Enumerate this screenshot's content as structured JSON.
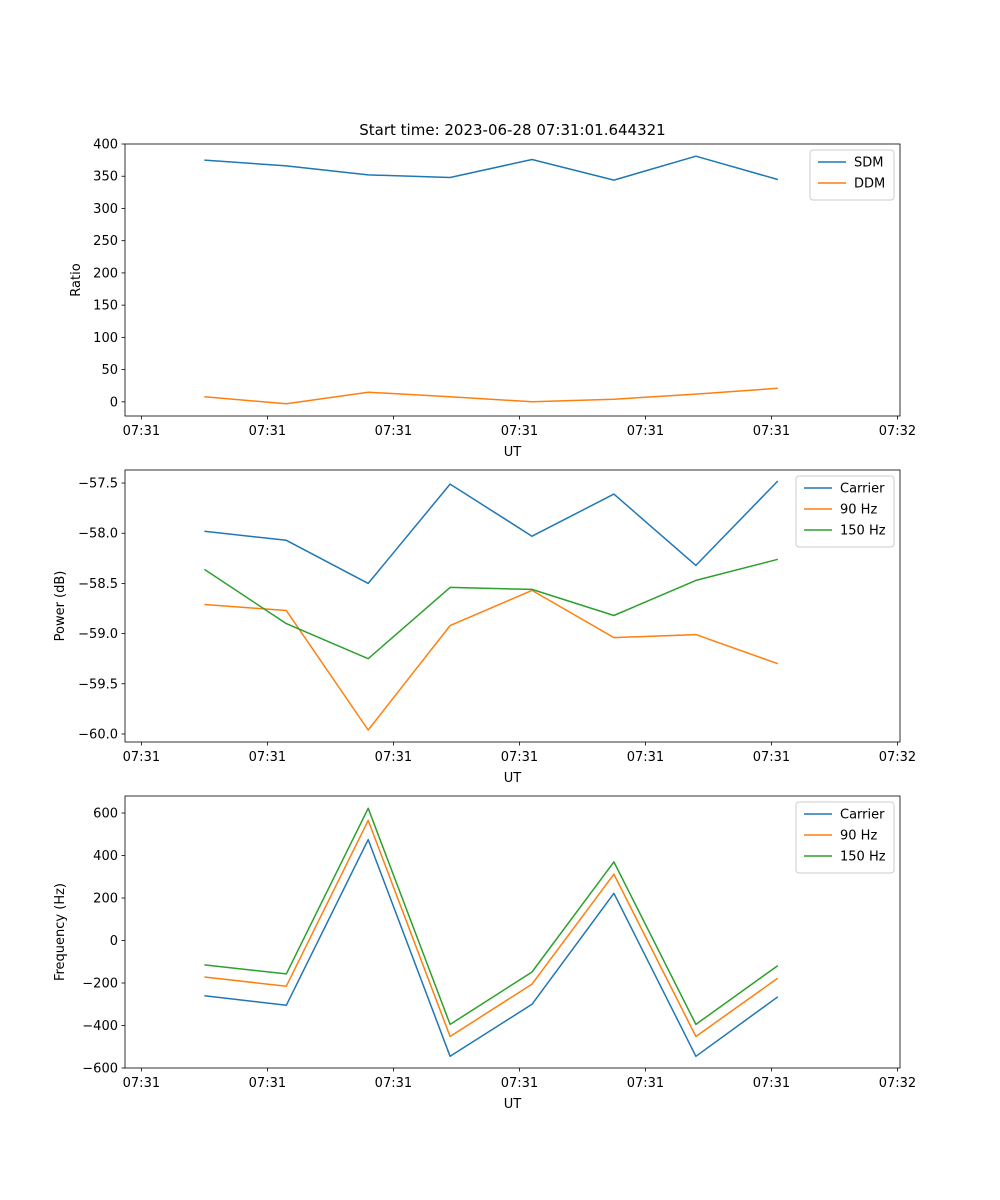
{
  "figure": {
    "title": "Start time: 2023-06-28 07:31:01.644321"
  },
  "colors": {
    "blue": "#1f77b4",
    "orange": "#ff7f0e",
    "green": "#2ca02c"
  },
  "chart_data": [
    {
      "type": "line",
      "title": "Start time: 2023-06-28 07:31:01.644321",
      "xlabel": "UT",
      "ylabel": "Ratio",
      "x_tick_labels": [
        "07:31",
        "07:31",
        "07:31",
        "07:31",
        "07:31",
        "07:31",
        "07:32"
      ],
      "x_ticks": [
        0,
        1,
        2,
        3,
        4,
        5,
        6
      ],
      "xlim": [
        -0.13,
        6.02
      ],
      "ylim": [
        -22,
        400
      ],
      "y_ticks": [
        0,
        50,
        100,
        150,
        200,
        250,
        300,
        350,
        400
      ],
      "legend_position": "top-right",
      "x": [
        0.5,
        1.15,
        1.8,
        2.45,
        3.1,
        3.75,
        4.4,
        5.05
      ],
      "series": [
        {
          "name": "SDM",
          "color": "#1f77b4",
          "values": [
            375,
            366,
            352,
            348,
            376,
            344,
            381,
            345
          ]
        },
        {
          "name": "DDM",
          "color": "#ff7f0e",
          "values": [
            8,
            -3,
            15,
            8,
            0,
            4,
            12,
            21
          ]
        }
      ]
    },
    {
      "type": "line",
      "title": "",
      "xlabel": "UT",
      "ylabel": "Power (dB)",
      "x_tick_labels": [
        "07:31",
        "07:31",
        "07:31",
        "07:31",
        "07:31",
        "07:31",
        "07:32"
      ],
      "x_ticks": [
        0,
        1,
        2,
        3,
        4,
        5,
        6
      ],
      "xlim": [
        -0.13,
        6.02
      ],
      "ylim": [
        -60.08,
        -57.37
      ],
      "y_ticks": [
        -60.0,
        -59.5,
        -59.0,
        -58.5,
        -58.0,
        -57.5
      ],
      "y_tick_labels": [
        "−60.0",
        "−59.5",
        "−59.0",
        "−58.5",
        "−58.0",
        "−57.5"
      ],
      "legend_position": "top-right",
      "x": [
        0.5,
        1.15,
        1.8,
        2.45,
        3.1,
        3.75,
        4.4,
        5.05
      ],
      "series": [
        {
          "name": "Carrier",
          "color": "#1f77b4",
          "values": [
            -57.98,
            -58.07,
            -58.5,
            -57.51,
            -58.03,
            -57.61,
            -58.32,
            -57.48
          ]
        },
        {
          "name": "90 Hz",
          "color": "#ff7f0e",
          "values": [
            -58.71,
            -58.77,
            -59.96,
            -58.92,
            -58.57,
            -59.04,
            -59.01,
            -59.3
          ]
        },
        {
          "name": "150 Hz",
          "color": "#2ca02c",
          "values": [
            -58.36,
            -58.9,
            -59.25,
            -58.54,
            -58.56,
            -58.82,
            -58.47,
            -58.26
          ]
        }
      ]
    },
    {
      "type": "line",
      "title": "",
      "xlabel": "UT",
      "ylabel": "Frequency (Hz)",
      "x_tick_labels": [
        "07:31",
        "07:31",
        "07:31",
        "07:31",
        "07:31",
        "07:31",
        "07:32"
      ],
      "x_ticks": [
        0,
        1,
        2,
        3,
        4,
        5,
        6
      ],
      "xlim": [
        -0.13,
        6.02
      ],
      "ylim": [
        -600,
        680
      ],
      "y_ticks": [
        -600,
        -400,
        -200,
        0,
        200,
        400,
        600
      ],
      "y_tick_labels": [
        "−600",
        "−400",
        "−200",
        "0",
        "200",
        "400",
        "600"
      ],
      "legend_position": "top-right",
      "x": [
        0.5,
        1.15,
        1.8,
        2.45,
        3.1,
        3.75,
        4.4,
        5.05
      ],
      "series": [
        {
          "name": "Carrier",
          "color": "#1f77b4",
          "values": [
            -260,
            -305,
            475,
            -545,
            -300,
            222,
            -545,
            -265
          ]
        },
        {
          "name": "90 Hz",
          "color": "#ff7f0e",
          "values": [
            -172,
            -215,
            565,
            -452,
            -205,
            312,
            -452,
            -177
          ]
        },
        {
          "name": "150 Hz",
          "color": "#2ca02c",
          "values": [
            -115,
            -157,
            622,
            -395,
            -148,
            370,
            -395,
            -118
          ]
        }
      ]
    }
  ]
}
